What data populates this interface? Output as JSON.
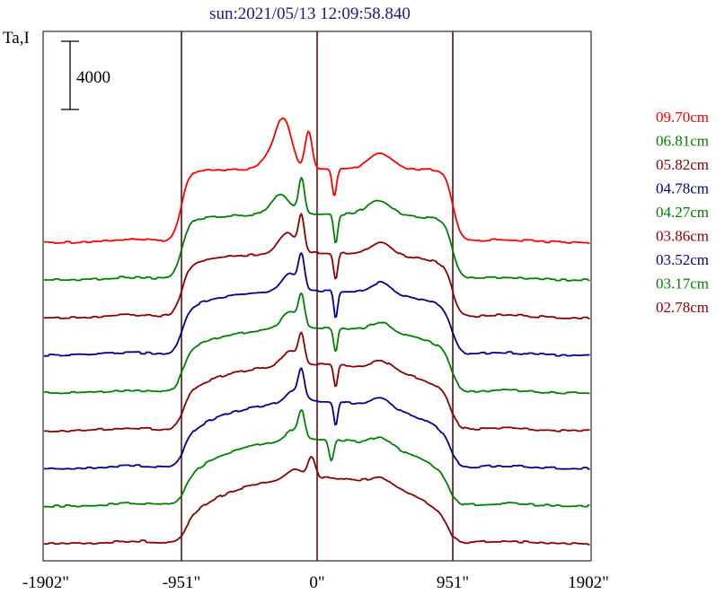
{
  "chart_data": {
    "type": "line",
    "title": "sun:2021/05/13 12:09:58.840",
    "ylabel": "Ta,I",
    "scale_bar_label": "4000",
    "xlim": [
      -1902,
      1902
    ],
    "x_tick_labels": [
      "-1902\"",
      "-951\"",
      "0\"",
      "951\"",
      "1902\""
    ],
    "x_ticks": [
      -1902,
      -951,
      0,
      951,
      1902
    ],
    "vertical_lines": [
      -951,
      0,
      951
    ],
    "colors": {
      "title": "#1a1a80",
      "axis": "#000000",
      "vline": "#5a1010"
    },
    "series": [
      {
        "name": "09.70cm",
        "color": "#ff0000",
        "amp": 88,
        "blend": 0.0,
        "peaks": [
          [
            -1200,
            -300,
            180,
            18
          ],
          [
            300,
            -230,
            130,
            46
          ],
          [
            -850,
            -60,
            60,
            42
          ],
          [
            500,
            120,
            36,
            -30
          ],
          [
            600,
            440,
            200,
            18
          ]
        ]
      },
      {
        "name": "06.81cm",
        "color": "#008000",
        "amp": 79,
        "blend": 0.12,
        "peaks": [
          [
            -1200,
            -260,
            160,
            22
          ],
          [
            -750,
            -110,
            50,
            40
          ],
          [
            600,
            130,
            34,
            -32
          ],
          [
            500,
            430,
            200,
            16
          ]
        ]
      },
      {
        "name": "05.82cm",
        "color": "#8b0000",
        "amp": 77,
        "blend": 0.25,
        "peaks": [
          [
            -1000,
            -210,
            150,
            22
          ],
          [
            500,
            -110,
            50,
            38
          ],
          [
            580,
            130,
            34,
            -30
          ],
          [
            420,
            450,
            180,
            14
          ]
        ]
      },
      {
        "name": "04.78cm",
        "color": "#00008b",
        "amp": 76,
        "blend": 0.38,
        "peaks": [
          [
            -800,
            -190,
            140,
            20
          ],
          [
            320,
            -110,
            50,
            35
          ],
          [
            500,
            130,
            33,
            -30
          ],
          [
            300,
            450,
            170,
            12
          ]
        ]
      },
      {
        "name": "04.27cm",
        "color": "#008000",
        "amp": 76,
        "blend": 0.5,
        "peaks": [
          [
            -600,
            -190,
            140,
            18
          ],
          [
            280,
            -110,
            50,
            32
          ],
          [
            440,
            130,
            33,
            -28
          ],
          [
            200,
            450,
            170,
            10
          ]
        ]
      },
      {
        "name": "03.86cm",
        "color": "#8b0000",
        "amp": 76,
        "blend": 0.62,
        "peaks": [
          [
            -400,
            -190,
            140,
            16
          ],
          [
            220,
            -110,
            50,
            30
          ],
          [
            400,
            130,
            33,
            -26
          ],
          [
            150,
            450,
            170,
            10
          ]
        ]
      },
      {
        "name": "03.52cm",
        "color": "#00008b",
        "amp": 76,
        "blend": 0.75,
        "peaks": [
          [
            -200,
            -160,
            140,
            14
          ],
          [
            200,
            -110,
            50,
            28
          ],
          [
            360,
            130,
            32,
            -26
          ],
          [
            120,
            450,
            170,
            10
          ]
        ]
      },
      {
        "name": "03.17cm",
        "color": "#008000",
        "amp": 75,
        "blend": 0.88,
        "peaks": [
          [
            -100,
            -160,
            140,
            12
          ],
          [
            90,
            -110,
            50,
            26
          ],
          [
            110,
            100,
            40,
            -24
          ],
          [
            100,
            450,
            170,
            10
          ]
        ]
      },
      {
        "name": "02.78cm",
        "color": "#8b0000",
        "amp": 74,
        "blend": 1.0,
        "peaks": [
          [
            60,
            -160,
            140,
            10
          ],
          [
            40,
            -40,
            60,
            22
          ],
          [
            60,
            450,
            170,
            8
          ]
        ]
      }
    ]
  }
}
